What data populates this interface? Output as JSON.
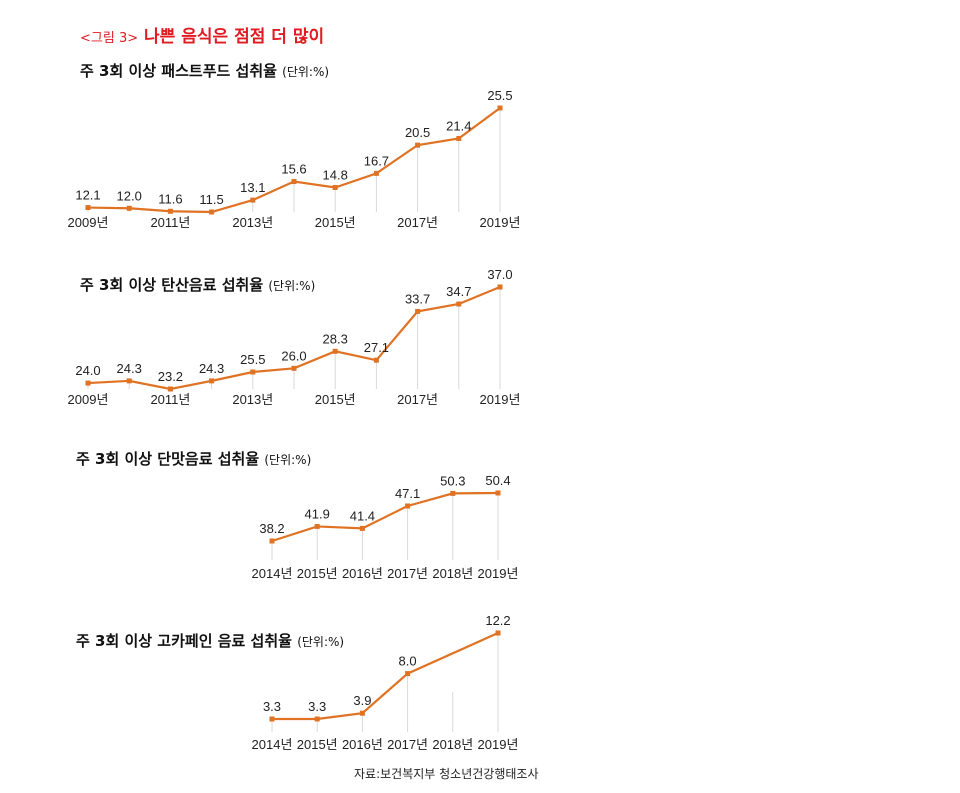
{
  "figure": {
    "tag": "<그림 3>",
    "title": "나쁜 음식은 점점 더 많이"
  },
  "source": "자료:보건복지부 청소년건강행태조사",
  "unit_label": "(단위:%)",
  "chart_data": [
    {
      "type": "line",
      "title": "주 3회 이상 패스트푸드 섭취율",
      "unit": "(단위:%)",
      "x": [
        "2009년",
        "2010년",
        "2011년",
        "2012년",
        "2013년",
        "2014년",
        "2015년",
        "2016년",
        "2017년",
        "2018년",
        "2019년"
      ],
      "x_tick_labels": [
        "2009년",
        "",
        "2011년",
        "",
        "2013년",
        "",
        "2015년",
        "",
        "2017년",
        "",
        "2019년"
      ],
      "series": [
        {
          "values": [
            12.1,
            12.0,
            11.6,
            11.5,
            13.1,
            15.6,
            14.8,
            16.7,
            20.5,
            21.4,
            25.5
          ]
        }
      ],
      "value_labels": [
        "12.1",
        "12.0",
        "11.6",
        "11.5",
        "13.1",
        "15.6",
        "14.8",
        "16.7",
        "20.5",
        "21.4",
        "25.5"
      ],
      "color": "#e07223",
      "grid": "vertical"
    },
    {
      "type": "line",
      "title": "주 3회 이상 탄산음료 섭취율",
      "unit": "(단위:%)",
      "x": [
        "2009년",
        "2010년",
        "2011년",
        "2012년",
        "2013년",
        "2014년",
        "2015년",
        "2016년",
        "2017년",
        "2018년",
        "2019년"
      ],
      "x_tick_labels": [
        "2009년",
        "",
        "2011년",
        "",
        "2013년",
        "",
        "2015년",
        "",
        "2017년",
        "",
        "2019년"
      ],
      "series": [
        {
          "values": [
            24.0,
            24.3,
            23.2,
            24.3,
            25.5,
            26.0,
            28.3,
            27.1,
            33.7,
            34.7,
            37.0
          ]
        }
      ],
      "value_labels": [
        "24.0",
        "24.3",
        "23.2",
        "24.3",
        "25.5",
        "26.0",
        "28.3",
        "27.1",
        "33.7",
        "34.7",
        "37.0"
      ],
      "color": "#e07223",
      "grid": "vertical"
    },
    {
      "type": "line",
      "title": "주 3회 이상 단맛음료 섭취율",
      "unit": "(단위:%)",
      "x": [
        "2014년",
        "2015년",
        "2016년",
        "2017년",
        "2018년",
        "2019년"
      ],
      "x_tick_labels": [
        "2014년",
        "2015년",
        "2016년",
        "2017년",
        "2018년",
        "2019년"
      ],
      "series": [
        {
          "values": [
            38.2,
            41.9,
            41.4,
            47.1,
            50.3,
            50.4
          ]
        }
      ],
      "value_labels": [
        "38.2",
        "41.9",
        "41.4",
        "47.1",
        "50.3",
        "50.4"
      ],
      "color": "#e07223",
      "grid": "vertical"
    },
    {
      "type": "line",
      "title": "주 3회 이상 고카페인 음료 섭취율",
      "unit": "(단위:%)",
      "x": [
        "2014년",
        "2015년",
        "2016년",
        "2017년",
        "2018년",
        "2019년"
      ],
      "x_tick_labels": [
        "2014년",
        "2015년",
        "2016년",
        "2017년",
        "2018년",
        "2019년"
      ],
      "series": [
        {
          "values": [
            3.3,
            3.3,
            3.9,
            8.0,
            null,
            12.2
          ]
        }
      ],
      "value_labels": [
        "3.3",
        "3.3",
        "3.9",
        "8.0",
        "",
        "12.2"
      ],
      "color": "#e07223",
      "grid": "vertical"
    }
  ]
}
